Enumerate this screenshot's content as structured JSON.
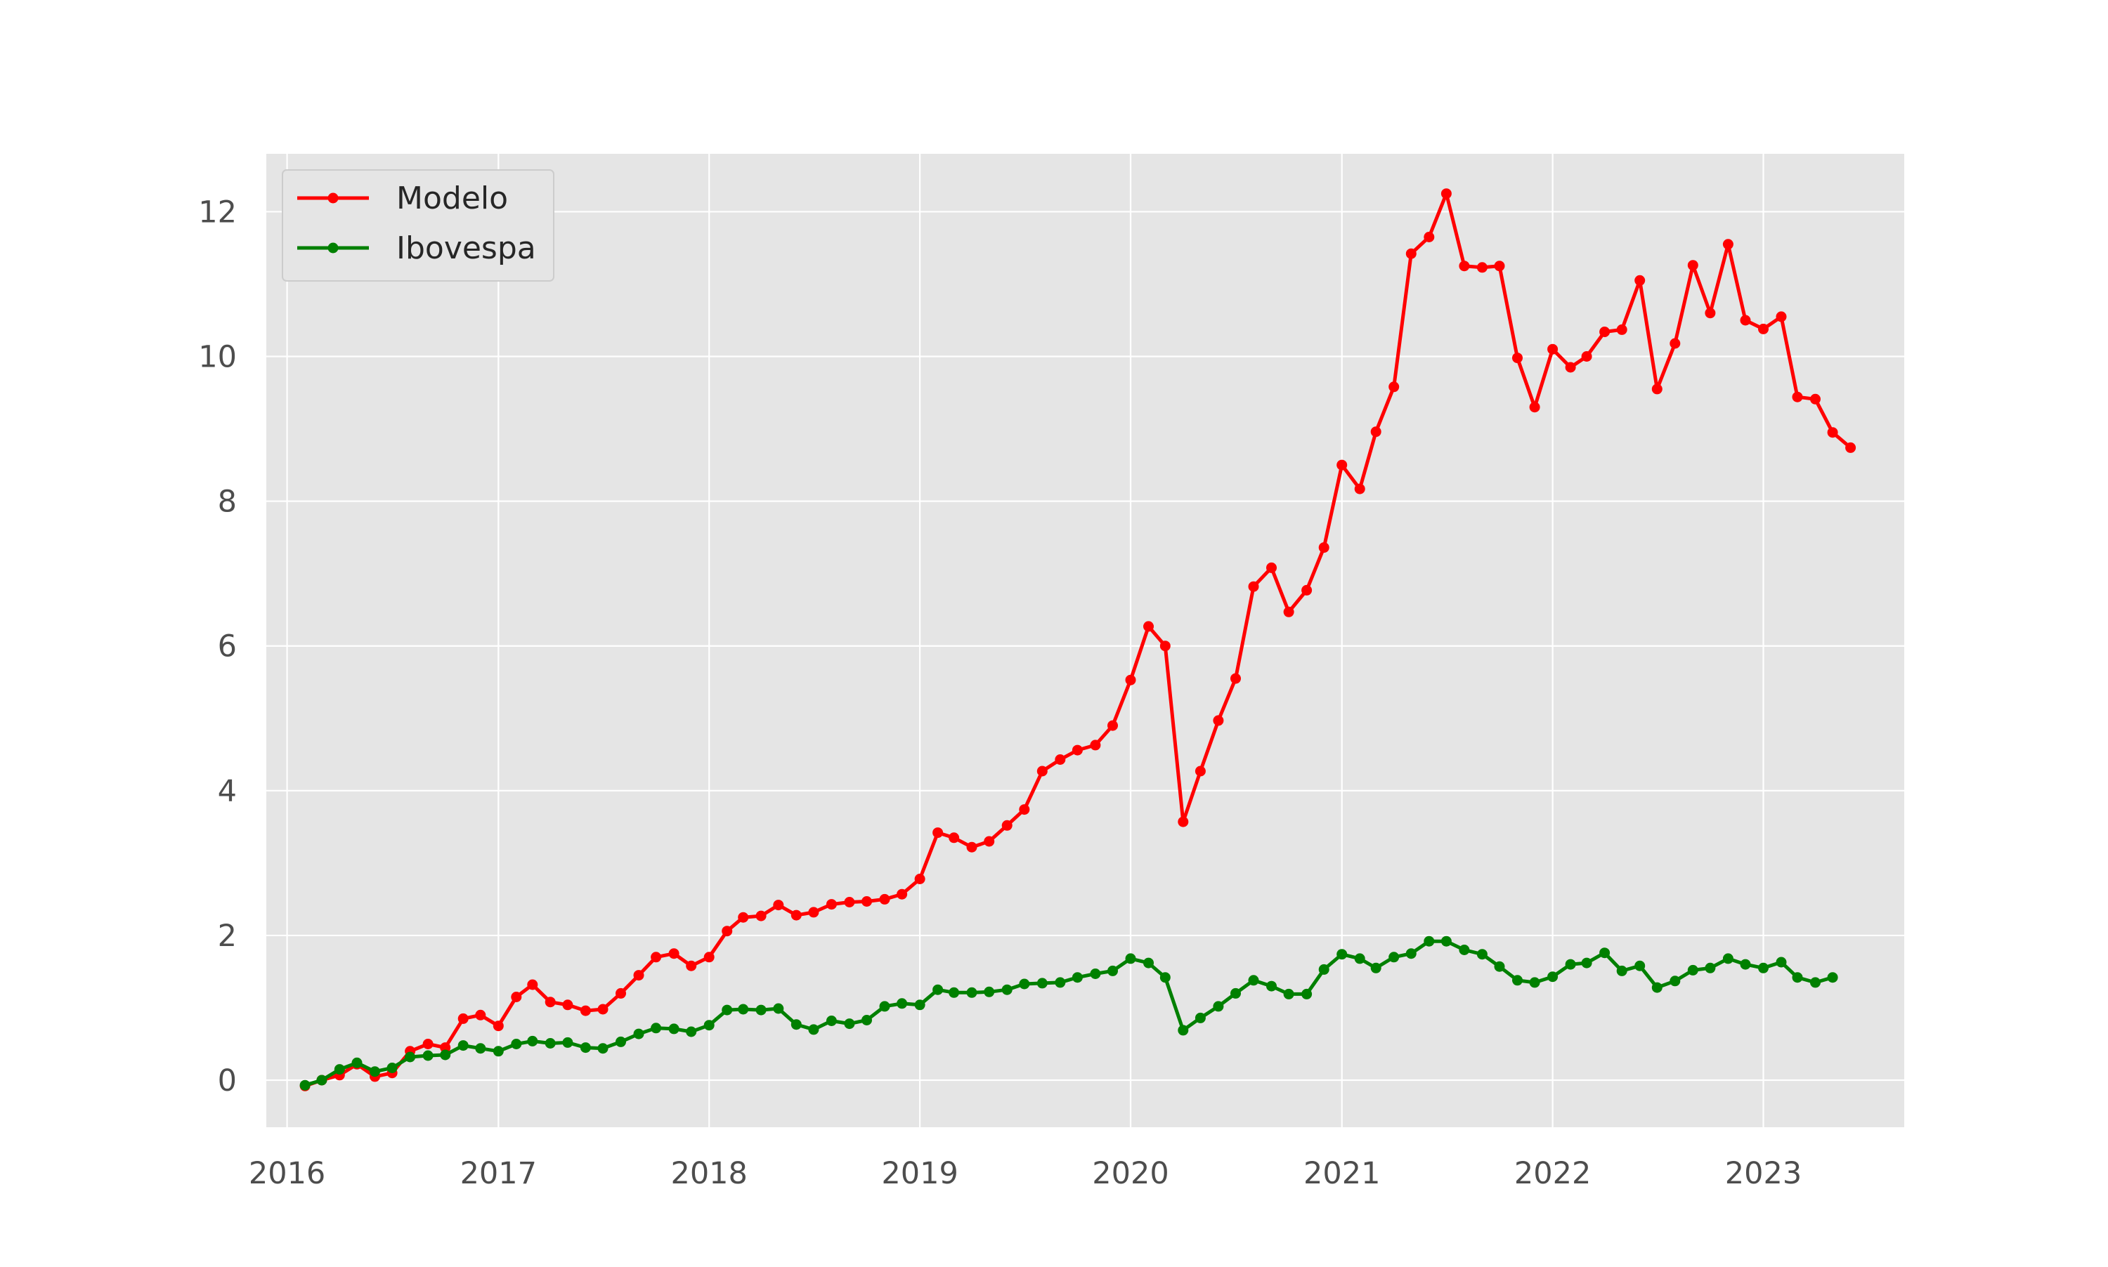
{
  "chart_data": {
    "type": "line",
    "title": "",
    "xlabel": "",
    "ylabel": "",
    "x_axis_type": "date",
    "xlim": [
      "2015-11-26",
      "2023-09-02"
    ],
    "ylim": [
      -0.65,
      12.8
    ],
    "x_ticks": [
      "2016",
      "2017",
      "2018",
      "2019",
      "2020",
      "2021",
      "2022",
      "2023"
    ],
    "y_ticks": [
      0,
      2,
      4,
      6,
      8,
      10,
      12
    ],
    "grid": true,
    "background": "#e5e5e5",
    "legend_position": "top-left",
    "series": [
      {
        "name": "Modelo",
        "color": "#ff0000",
        "marker": "circle",
        "points": [
          [
            "2016-02-01",
            -0.08
          ],
          [
            "2016-03-01",
            0.0
          ],
          [
            "2016-04-01",
            0.07
          ],
          [
            "2016-05-01",
            0.22
          ],
          [
            "2016-06-01",
            0.05
          ],
          [
            "2016-07-01",
            0.1
          ],
          [
            "2016-08-01",
            0.4
          ],
          [
            "2016-09-01",
            0.5
          ],
          [
            "2016-10-01",
            0.45
          ],
          [
            "2016-11-01",
            0.85
          ],
          [
            "2016-12-01",
            0.9
          ],
          [
            "2017-01-01",
            0.75
          ],
          [
            "2017-02-01",
            1.15
          ],
          [
            "2017-03-01",
            1.32
          ],
          [
            "2017-04-01",
            1.08
          ],
          [
            "2017-05-01",
            1.04
          ],
          [
            "2017-06-01",
            0.96
          ],
          [
            "2017-07-01",
            0.98
          ],
          [
            "2017-08-01",
            1.2
          ],
          [
            "2017-09-01",
            1.45
          ],
          [
            "2017-10-01",
            1.7
          ],
          [
            "2017-11-01",
            1.75
          ],
          [
            "2017-12-01",
            1.58
          ],
          [
            "2018-01-01",
            1.7
          ],
          [
            "2018-02-01",
            2.06
          ],
          [
            "2018-03-01",
            2.25
          ],
          [
            "2018-04-01",
            2.27
          ],
          [
            "2018-05-01",
            2.42
          ],
          [
            "2018-06-01",
            2.28
          ],
          [
            "2018-07-01",
            2.32
          ],
          [
            "2018-08-01",
            2.43
          ],
          [
            "2018-09-01",
            2.46
          ],
          [
            "2018-10-01",
            2.47
          ],
          [
            "2018-11-01",
            2.5
          ],
          [
            "2018-12-01",
            2.57
          ],
          [
            "2019-01-01",
            2.78
          ],
          [
            "2019-02-01",
            3.42
          ],
          [
            "2019-03-01",
            3.35
          ],
          [
            "2019-04-01",
            3.22
          ],
          [
            "2019-05-01",
            3.3
          ],
          [
            "2019-06-01",
            3.52
          ],
          [
            "2019-07-01",
            3.74
          ],
          [
            "2019-08-01",
            4.27
          ],
          [
            "2019-09-01",
            4.43
          ],
          [
            "2019-10-01",
            4.56
          ],
          [
            "2019-11-01",
            4.63
          ],
          [
            "2019-12-01",
            4.9
          ],
          [
            "2020-01-01",
            5.53
          ],
          [
            "2020-02-01",
            6.27
          ],
          [
            "2020-03-01",
            6.0
          ],
          [
            "2020-04-01",
            3.57
          ],
          [
            "2020-05-01",
            4.27
          ],
          [
            "2020-06-01",
            4.97
          ],
          [
            "2020-07-01",
            5.55
          ],
          [
            "2020-08-01",
            6.82
          ],
          [
            "2020-09-01",
            7.08
          ],
          [
            "2020-10-01",
            6.47
          ],
          [
            "2020-11-01",
            6.77
          ],
          [
            "2020-12-01",
            7.36
          ],
          [
            "2021-01-01",
            8.5
          ],
          [
            "2021-02-01",
            8.17
          ],
          [
            "2021-03-01",
            8.96
          ],
          [
            "2021-04-01",
            9.58
          ],
          [
            "2021-05-01",
            11.42
          ],
          [
            "2021-06-01",
            11.65
          ],
          [
            "2021-07-01",
            12.25
          ],
          [
            "2021-08-01",
            11.25
          ],
          [
            "2021-09-01",
            11.23
          ],
          [
            "2021-10-01",
            11.25
          ],
          [
            "2021-11-01",
            9.98
          ],
          [
            "2021-12-01",
            9.3
          ],
          [
            "2022-01-01",
            10.1
          ],
          [
            "2022-02-01",
            9.85
          ],
          [
            "2022-03-01",
            10.0
          ],
          [
            "2022-04-01",
            10.34
          ],
          [
            "2022-05-01",
            10.37
          ],
          [
            "2022-06-01",
            11.05
          ],
          [
            "2022-07-01",
            9.55
          ],
          [
            "2022-08-01",
            10.18
          ],
          [
            "2022-09-01",
            11.26
          ],
          [
            "2022-10-01",
            10.6
          ],
          [
            "2022-11-01",
            11.55
          ],
          [
            "2022-12-01",
            10.5
          ],
          [
            "2023-01-01",
            10.38
          ],
          [
            "2023-02-01",
            10.55
          ],
          [
            "2023-03-01",
            9.44
          ],
          [
            "2023-04-01",
            9.41
          ],
          [
            "2023-05-01",
            8.95
          ],
          [
            "2023-06-01",
            8.74
          ]
        ]
      },
      {
        "name": "Ibovespa",
        "color": "#008000",
        "marker": "circle",
        "points": [
          [
            "2016-02-01",
            -0.07
          ],
          [
            "2016-03-01",
            0.0
          ],
          [
            "2016-04-01",
            0.15
          ],
          [
            "2016-05-01",
            0.24
          ],
          [
            "2016-06-01",
            0.12
          ],
          [
            "2016-07-01",
            0.17
          ],
          [
            "2016-08-01",
            0.32
          ],
          [
            "2016-09-01",
            0.34
          ],
          [
            "2016-10-01",
            0.35
          ],
          [
            "2016-11-01",
            0.48
          ],
          [
            "2016-12-01",
            0.44
          ],
          [
            "2017-01-01",
            0.4
          ],
          [
            "2017-02-01",
            0.5
          ],
          [
            "2017-03-01",
            0.54
          ],
          [
            "2017-04-01",
            0.51
          ],
          [
            "2017-05-01",
            0.52
          ],
          [
            "2017-06-01",
            0.45
          ],
          [
            "2017-07-01",
            0.44
          ],
          [
            "2017-08-01",
            0.53
          ],
          [
            "2017-09-01",
            0.64
          ],
          [
            "2017-10-01",
            0.72
          ],
          [
            "2017-11-01",
            0.71
          ],
          [
            "2017-12-01",
            0.67
          ],
          [
            "2018-01-01",
            0.76
          ],
          [
            "2018-02-01",
            0.97
          ],
          [
            "2018-03-01",
            0.98
          ],
          [
            "2018-04-01",
            0.97
          ],
          [
            "2018-05-01",
            0.99
          ],
          [
            "2018-06-01",
            0.77
          ],
          [
            "2018-07-01",
            0.7
          ],
          [
            "2018-08-01",
            0.82
          ],
          [
            "2018-09-01",
            0.78
          ],
          [
            "2018-10-01",
            0.83
          ],
          [
            "2018-11-01",
            1.02
          ],
          [
            "2018-12-01",
            1.06
          ],
          [
            "2019-01-01",
            1.04
          ],
          [
            "2019-02-01",
            1.25
          ],
          [
            "2019-03-01",
            1.21
          ],
          [
            "2019-04-01",
            1.21
          ],
          [
            "2019-05-01",
            1.22
          ],
          [
            "2019-06-01",
            1.25
          ],
          [
            "2019-07-01",
            1.33
          ],
          [
            "2019-08-01",
            1.34
          ],
          [
            "2019-09-01",
            1.35
          ],
          [
            "2019-10-01",
            1.42
          ],
          [
            "2019-11-01",
            1.47
          ],
          [
            "2019-12-01",
            1.51
          ],
          [
            "2020-01-01",
            1.68
          ],
          [
            "2020-02-01",
            1.62
          ],
          [
            "2020-03-01",
            1.42
          ],
          [
            "2020-04-01",
            0.69
          ],
          [
            "2020-05-01",
            0.86
          ],
          [
            "2020-06-01",
            1.02
          ],
          [
            "2020-07-01",
            1.2
          ],
          [
            "2020-08-01",
            1.38
          ],
          [
            "2020-09-01",
            1.3
          ],
          [
            "2020-10-01",
            1.19
          ],
          [
            "2020-11-01",
            1.19
          ],
          [
            "2020-12-01",
            1.53
          ],
          [
            "2021-01-01",
            1.74
          ],
          [
            "2021-02-01",
            1.68
          ],
          [
            "2021-03-01",
            1.55
          ],
          [
            "2021-04-01",
            1.7
          ],
          [
            "2021-05-01",
            1.75
          ],
          [
            "2021-06-01",
            1.92
          ],
          [
            "2021-07-01",
            1.92
          ],
          [
            "2021-08-01",
            1.8
          ],
          [
            "2021-09-01",
            1.74
          ],
          [
            "2021-10-01",
            1.57
          ],
          [
            "2021-11-01",
            1.38
          ],
          [
            "2021-12-01",
            1.35
          ],
          [
            "2022-01-01",
            1.43
          ],
          [
            "2022-02-01",
            1.6
          ],
          [
            "2022-03-01",
            1.62
          ],
          [
            "2022-04-01",
            1.76
          ],
          [
            "2022-05-01",
            1.51
          ],
          [
            "2022-06-01",
            1.58
          ],
          [
            "2022-07-01",
            1.28
          ],
          [
            "2022-08-01",
            1.37
          ],
          [
            "2022-09-01",
            1.52
          ],
          [
            "2022-10-01",
            1.55
          ],
          [
            "2022-11-01",
            1.68
          ],
          [
            "2022-12-01",
            1.6
          ],
          [
            "2023-01-01",
            1.55
          ],
          [
            "2023-02-01",
            1.63
          ],
          [
            "2023-03-01",
            1.42
          ],
          [
            "2023-04-01",
            1.35
          ],
          [
            "2023-05-01",
            1.42
          ]
        ]
      }
    ]
  }
}
